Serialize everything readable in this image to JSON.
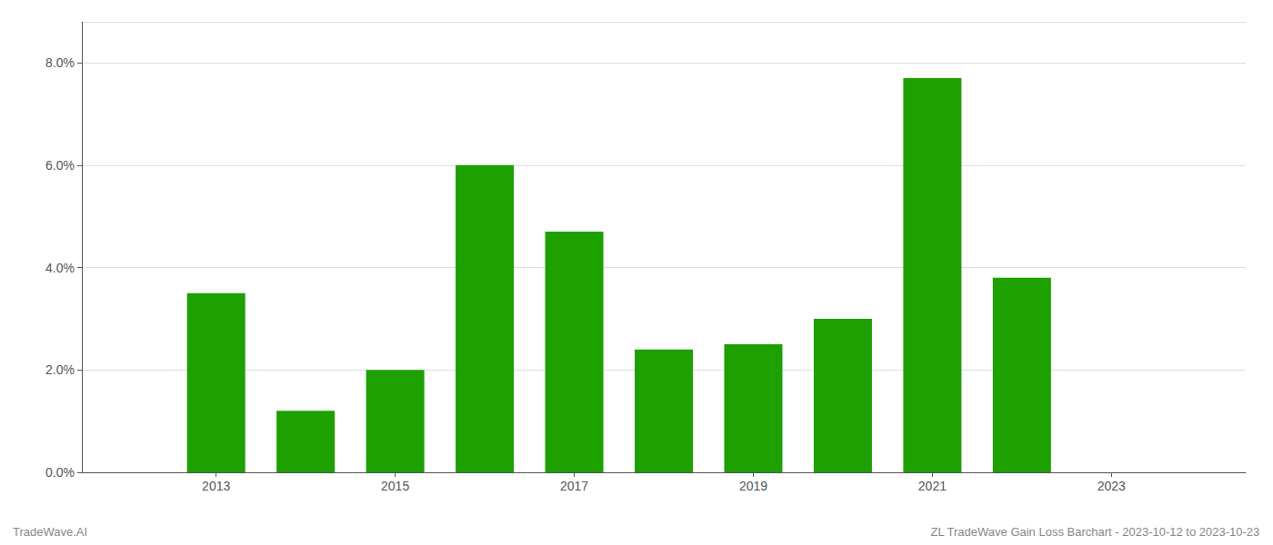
{
  "chart_data": {
    "type": "bar",
    "x": [
      2013,
      2014,
      2015,
      2016,
      2017,
      2018,
      2019,
      2020,
      2021,
      2022
    ],
    "values": [
      0.035,
      0.012,
      0.02,
      0.06,
      0.047,
      0.024,
      0.025,
      0.03,
      0.077,
      0.038
    ],
    "color": "#1da000",
    "xlim": [
      2011.5,
      2024.5
    ],
    "xticks": [
      2013,
      2015,
      2017,
      2019,
      2021,
      2023
    ],
    "ylim": [
      0,
      0.088
    ],
    "yticks": [
      {
        "value": 0,
        "label": "0.0%"
      },
      {
        "value": 0.02,
        "label": "2.0%"
      },
      {
        "value": 0.04,
        "label": "4.0%"
      },
      {
        "value": 0.06,
        "label": "6.0%"
      },
      {
        "value": 0.08,
        "label": "8.0%"
      }
    ],
    "grid": true,
    "annotations": [
      "TradeWave.AI",
      "ZL TradeWave Gain Loss Barchart - 2023-10-12 to 2023-10-23"
    ]
  }
}
